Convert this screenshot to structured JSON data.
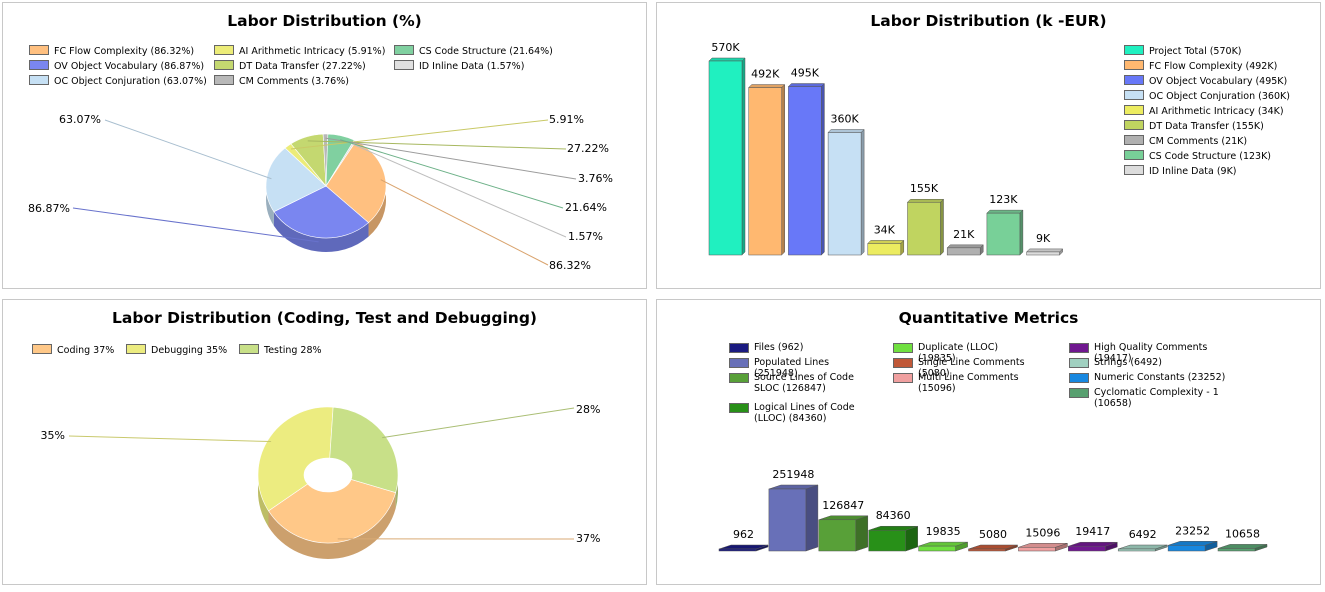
{
  "chart_data": [
    {
      "type": "pie",
      "title": "Labor Distribution (%)",
      "legend": [
        "FC Flow Complexity (86.32%)",
        "AI Arithmetic Intricacy (5.91%)",
        "CS Code Structure (21.64%)",
        "OV Object Vocabulary (86.87%)",
        "DT Data Transfer (27.22%)",
        "ID Inline Data (1.57%)",
        "OC Object Conjuration (63.07%)",
        "CM Comments (3.76%)"
      ],
      "slices": [
        {
          "name": "FC Flow Complexity",
          "value": 86.32,
          "label": "86.32%",
          "color": "#ffc080"
        },
        {
          "name": "OV Object Vocabulary",
          "value": 86.87,
          "label": "86.87%",
          "color": "#7a86f0"
        },
        {
          "name": "OC Object Conjuration",
          "value": 63.07,
          "label": "63.07%",
          "color": "#c6e0f4"
        },
        {
          "name": "AI Arithmetic Intricacy",
          "value": 5.91,
          "label": "5.91%",
          "color": "#ecec78"
        },
        {
          "name": "DT Data Transfer",
          "value": 27.22,
          "label": "27.22%",
          "color": "#c4d870"
        },
        {
          "name": "CM Comments",
          "value": 3.76,
          "label": "3.76%",
          "color": "#b8b8b8"
        },
        {
          "name": "CS Code Structure",
          "value": 21.64,
          "label": "21.64%",
          "color": "#80d0a0"
        },
        {
          "name": "ID Inline Data",
          "value": 1.57,
          "label": "1.57%",
          "color": "#e0e0e0"
        }
      ],
      "legend_position": "top"
    },
    {
      "type": "bar",
      "title": "Labor Distribution (k -EUR)",
      "categories": [
        "Project Total",
        "FC Flow Complexity",
        "OV Object Vocabulary",
        "OC Object Conjuration",
        "AI Arithmetic Intricacy",
        "DT Data Transfer",
        "CM Comments",
        "CS Code Structure",
        "ID Inline Data"
      ],
      "values": [
        570,
        492,
        495,
        360,
        34,
        155,
        21,
        123,
        9
      ],
      "data_labels": [
        "570K",
        "492K",
        "495K",
        "360K",
        "34K",
        "155K",
        "21K",
        "123K",
        "9K"
      ],
      "colors": [
        "#20f0c0",
        "#ffb870",
        "#6878f8",
        "#c6e0f4",
        "#ecec60",
        "#c0d460",
        "#b0b0b0",
        "#78d098",
        "#dcdcdc"
      ],
      "legend": [
        "Project Total (570K)",
        "FC Flow Complexity (492K)",
        "OV Object Vocabulary (495K)",
        "OC Object Conjuration (360K)",
        "AI Arithmetic Intricacy (34K)",
        "DT Data Transfer (155K)",
        "CM Comments (21K)",
        "CS Code Structure (123K)",
        "ID Inline Data (9K)"
      ],
      "legend_position": "right",
      "grid": false
    },
    {
      "type": "pie",
      "title": "Labor Distribution (Coding, Test and Debugging)",
      "legend": [
        "Coding  37%",
        "Debugging  35%",
        "Testing  28%"
      ],
      "slices": [
        {
          "name": "Coding",
          "value": 37,
          "label": "37%",
          "color": "#ffc888"
        },
        {
          "name": "Debugging",
          "value": 35,
          "label": "35%",
          "color": "#ecec80"
        },
        {
          "name": "Testing",
          "value": 28,
          "label": "28%",
          "color": "#c8e088"
        }
      ],
      "donut": true,
      "legend_position": "top"
    },
    {
      "type": "bar",
      "title": "Quantitative Metrics",
      "categories": [
        "Files",
        "Populated Lines",
        "Source Lines of Code SLOC",
        "Logical Lines of Code (LLOC)",
        "Duplicate (LLOC)",
        "Single Line Comments",
        "Multi Line Comments",
        "High Quality Comments",
        "Strings",
        "Numeric Constants",
        "Cyclomatic Complexity - 1"
      ],
      "values": [
        962,
        251948,
        126847,
        84360,
        19835,
        5080,
        15096,
        19417,
        6492,
        23252,
        10658
      ],
      "data_labels": [
        "962",
        "251948",
        "126847",
        "84360",
        "19835",
        "5080",
        "15096",
        "19417",
        "6492",
        "23252",
        "10658"
      ],
      "colors": [
        "#1a1a80",
        "#6870b8",
        "#58a038",
        "#289018",
        "#70e040",
        "#c05838",
        "#f0a0a0",
        "#701890",
        "#a0d0c0",
        "#1888e0",
        "#58a070"
      ],
      "legend": [
        "Files (962)",
        "Populated Lines (251948)",
        "Source Lines of Code SLOC (126847)",
        "Logical Lines of Code (LLOC) (84360)",
        "Duplicate (LLOC) (19835)",
        "Single Line Comments (5080)",
        "Multi Line Comments (15096)",
        "High Quality Comments (19417)",
        "Strings (6492)",
        "Numeric Constants (23252)",
        "Cyclomatic Complexity - 1 (10658)"
      ],
      "legend_position": "top",
      "grid": false
    }
  ]
}
